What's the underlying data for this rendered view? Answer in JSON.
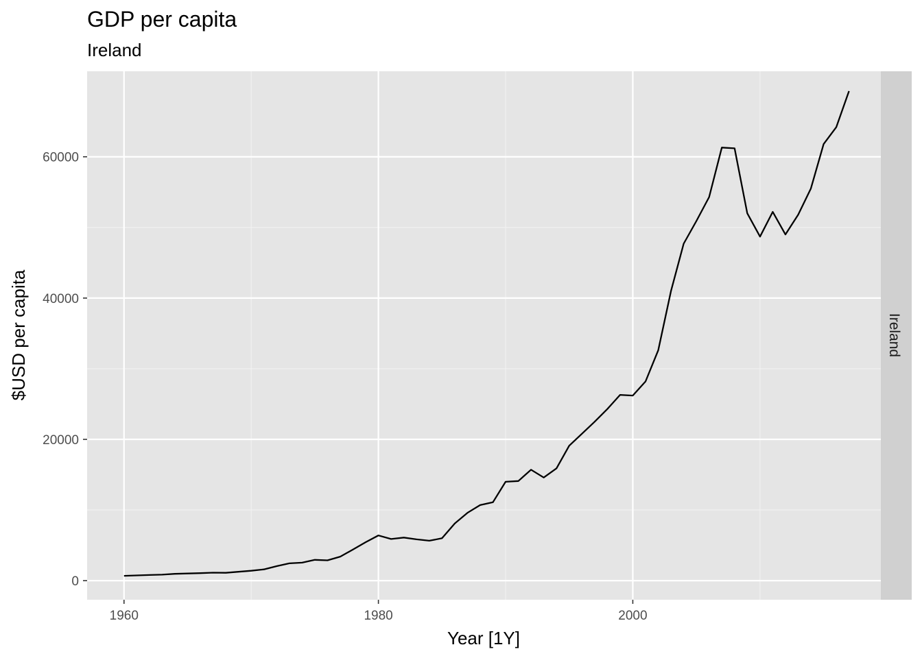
{
  "chart_data": {
    "type": "line",
    "title": "GDP per capita",
    "subtitle": "Ireland",
    "xlabel": "Year [1Y]",
    "ylabel": "$USD per capita",
    "facet_label": "Ireland",
    "xlim": [
      1957.1,
      2019.5
    ],
    "ylim": [
      -2700,
      72100
    ],
    "x_ticks": [
      1960,
      1980,
      2000
    ],
    "x_ticks_minor": [
      1970,
      1990,
      2010
    ],
    "y_ticks": [
      0,
      20000,
      40000,
      60000
    ],
    "y_ticks_minor": [
      10000,
      30000,
      50000
    ],
    "grid": true,
    "legend": "none",
    "series": [
      {
        "x": [
          1960,
          1961,
          1962,
          1963,
          1964,
          1965,
          1966,
          1967,
          1968,
          1969,
          1970,
          1971,
          1972,
          1973,
          1974,
          1975,
          1976,
          1977,
          1978,
          1979,
          1980,
          1981,
          1982,
          1983,
          1984,
          1985,
          1986,
          1987,
          1988,
          1989,
          1990,
          1991,
          1992,
          1993,
          1994,
          1995,
          1996,
          1997,
          1998,
          1999,
          2000,
          2001,
          2002,
          2003,
          2004,
          2005,
          2006,
          2007,
          2008,
          2009,
          2010,
          2011,
          2012,
          2013,
          2014,
          2015,
          2016,
          2017
        ],
        "values": [
          686,
          740,
          800,
          850,
          970,
          1020,
          1060,
          1130,
          1110,
          1260,
          1400,
          1600,
          2050,
          2450,
          2550,
          2950,
          2880,
          3400,
          4400,
          5450,
          6400,
          5900,
          6100,
          5850,
          5650,
          6000,
          8100,
          9600,
          10700,
          11100,
          14000,
          14100,
          15700,
          14600,
          15900,
          19100,
          20800,
          22500,
          24300,
          26300,
          26200,
          28200,
          32600,
          41000,
          47700,
          50900,
          54300,
          61300,
          61200,
          52000,
          48700,
          52200,
          49000,
          51800,
          55500,
          61800,
          64200,
          69300
        ]
      }
    ],
    "colors": {
      "panel_background": "#e5e5e5",
      "grid_major": "#ffffff",
      "grid_minor": "#f2f2f2",
      "strip_background": "#d0d0d0",
      "line": "#000000",
      "tick_text": "#4d4d4d"
    }
  }
}
